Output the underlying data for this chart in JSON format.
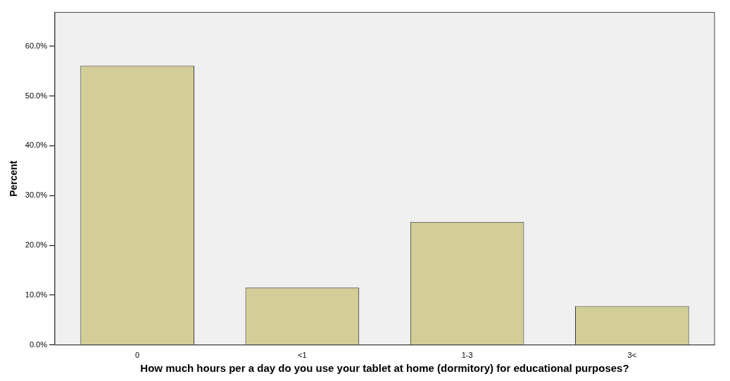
{
  "chart_data": {
    "type": "bar",
    "xlabel": "How much hours per a day do you use your tablet at home (dormitory) for educational purposes?",
    "ylabel": "Percent",
    "categories": [
      "0",
      "<1",
      "1-3",
      "3<"
    ],
    "values": [
      56.1,
      11.5,
      24.7,
      7.8
    ],
    "color": "#d3ce97",
    "ylim": [
      0,
      66.8
    ],
    "yticks": [
      {
        "value": 0,
        "label": "0.0%"
      },
      {
        "value": 10,
        "label": "10.0%"
      },
      {
        "value": 20,
        "label": "20.0%"
      },
      {
        "value": 30,
        "label": "30.0%"
      },
      {
        "value": 40,
        "label": "40.0%"
      },
      {
        "value": 50,
        "label": "50.0%"
      },
      {
        "value": 60,
        "label": "60.0%"
      }
    ],
    "grid": false,
    "legend": false
  }
}
